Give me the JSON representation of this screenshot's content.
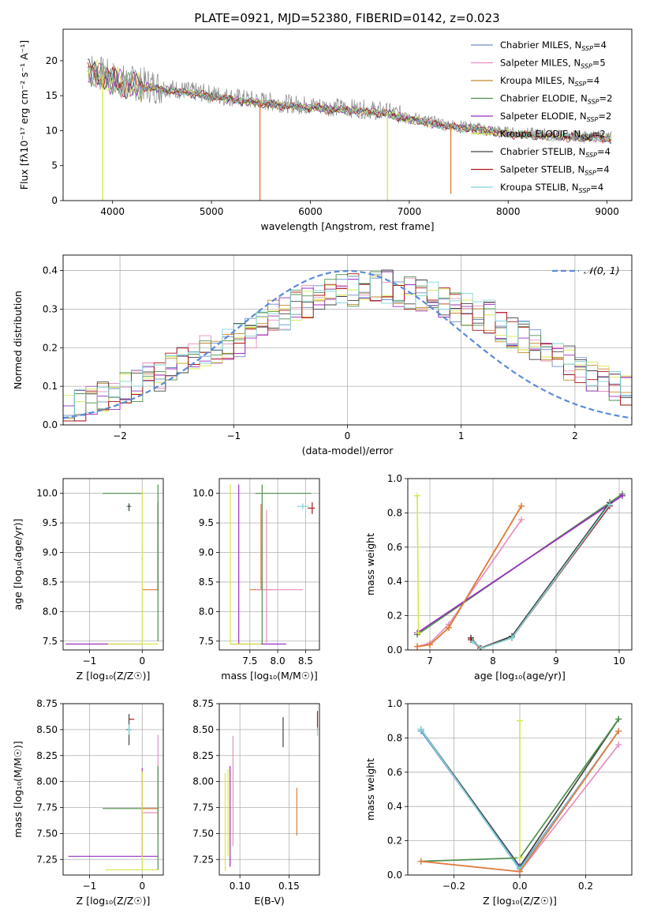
{
  "title": "PLATE=0921, MJD=52380, FIBERID=0142, z=0.023",
  "colors": {
    "Chabrier MILES": "#6f8fc9",
    "Salpeter MILES": "#e58fbf",
    "Kroupa MILES": "#c08a2f",
    "Chabrier ELODIE": "#4f8f4f",
    "Salpeter ELODIE": "#9b2fbf",
    "Kroupa ELODIE": "#d8e84a",
    "Chabrier STELIB": "#444444",
    "Salpeter STELIB": "#b01515",
    "Kroupa STELIB": "#7fd3d6",
    "data": "#888888",
    "orange": "#e07b39",
    "normal": "#5b8bd8"
  },
  "chart_data": [
    {
      "id": "spectrum",
      "type": "line",
      "title": "PLATE=0921, MJD=52380, FIBERID=0142, z=0.023",
      "xlabel": "wavelength [Angstrom, rest frame]",
      "ylabel": "Flux [fλ10⁻¹⁷ erg cm⁻² s⁻¹ A⁻¹]",
      "xlim": [
        3500,
        9250
      ],
      "ylim": [
        0,
        24.5
      ],
      "xticks": [
        4000,
        5000,
        6000,
        7000,
        8000,
        9000
      ],
      "yticks": [
        0,
        5,
        10,
        15,
        20
      ],
      "grid": false,
      "legend_position": "top-right",
      "legend": [
        {
          "label": "Chabrier MILES, N",
          "sub": "SSP",
          "tail": "=4",
          "color": "#6f8fc9"
        },
        {
          "label": "Salpeter MILES, N",
          "sub": "SSP",
          "tail": "=5",
          "color": "#e58fbf"
        },
        {
          "label": "Kroupa MILES, N",
          "sub": "SSP",
          "tail": "=4",
          "color": "#c08a2f"
        },
        {
          "label": "Chabrier ELODIE, N",
          "sub": "SSP",
          "tail": "=2",
          "color": "#4f8f4f"
        },
        {
          "label": "Salpeter ELODIE, N",
          "sub": "SSP",
          "tail": "=2",
          "color": "#9b2fbf"
        },
        {
          "label": "Kroupa ELODIE, N",
          "sub": "SSP",
          "tail": "=2",
          "color": "#d8e84a"
        },
        {
          "label": "Chabrier STELIB, N",
          "sub": "SSP",
          "tail": "=4",
          "color": "#444444"
        },
        {
          "label": "Salpeter STELIB, N",
          "sub": "SSP",
          "tail": "=4",
          "color": "#b01515"
        },
        {
          "label": "Kroupa STELIB, N",
          "sub": "SSP",
          "tail": "=4",
          "color": "#7fd3d6"
        }
      ],
      "continuum": {
        "x": [
          3750,
          3900,
          4000,
          4100,
          4200,
          4400,
          4600,
          4800,
          5000,
          5200,
          5400,
          5600,
          5800,
          6000,
          6200,
          6400,
          6600,
          6800,
          7000,
          7200,
          7400,
          7600,
          7800,
          8000,
          8300,
          8600,
          8900,
          9050
        ],
        "y": [
          19,
          18,
          17.5,
          17,
          16.8,
          16.4,
          16,
          15.6,
          15.2,
          14.8,
          14.4,
          14.1,
          13.8,
          13.6,
          13.4,
          13.2,
          13.0,
          12.6,
          12.0,
          11.4,
          10.9,
          10.6,
          10.2,
          9.8,
          9.6,
          9.3,
          9.2,
          9.1
        ]
      },
      "spikes_down": [
        {
          "x": 3900,
          "y": 0,
          "series": "Kroupa ELODIE"
        },
        {
          "x": 5490,
          "y": 0,
          "series": "orange"
        },
        {
          "x": 6780,
          "y": 0,
          "series": "Kroupa ELODIE"
        },
        {
          "x": 7420,
          "y": 1.0,
          "series": "orange"
        }
      ]
    },
    {
      "id": "residuals",
      "type": "histogram",
      "xlabel": "(data-model)/error",
      "ylabel": "Normed distribution",
      "xlim": [
        -2.5,
        2.5
      ],
      "ylim": [
        0,
        0.44
      ],
      "xticks": [
        -2,
        -1,
        0,
        1,
        2
      ],
      "yticks": [
        0.0,
        0.1,
        0.2,
        0.3,
        0.4
      ],
      "grid": true,
      "legend": [
        {
          "label": "𝒩(0, 1)",
          "color": "#5b8bd8",
          "style": "dashed"
        }
      ],
      "legend_position": "top-right",
      "bin_width": 0.1,
      "x_start": -2.5,
      "base": [
        0.04,
        0.05,
        0.06,
        0.07,
        0.08,
        0.09,
        0.1,
        0.12,
        0.13,
        0.15,
        0.16,
        0.17,
        0.19,
        0.2,
        0.21,
        0.22,
        0.24,
        0.26,
        0.28,
        0.29,
        0.31,
        0.32,
        0.33,
        0.34,
        0.35,
        0.35,
        0.36,
        0.36,
        0.36,
        0.35,
        0.34,
        0.34,
        0.33,
        0.32,
        0.31,
        0.3,
        0.29,
        0.28,
        0.26,
        0.24,
        0.23,
        0.21,
        0.19,
        0.18,
        0.16,
        0.14,
        0.13,
        0.11,
        0.1,
        0.09,
        0.08
      ],
      "normal": {
        "mean": 0,
        "sigma": 1
      }
    },
    {
      "id": "age-Z",
      "type": "errorbar",
      "xlabel": "Z [log₁₀(Z/Z☉)]",
      "ylabel": "age  [log₁₀(age/yr)]",
      "xlim": [
        -1.5,
        0.4
      ],
      "ylim": [
        7.35,
        10.25
      ],
      "xticks": [
        -1,
        0
      ],
      "yticks": [
        7.5,
        8.0,
        8.5,
        9.0,
        9.5,
        10.0
      ],
      "grid": true,
      "points": [
        {
          "x": 0.0,
          "y": 10.0,
          "xerr": [
            0.75,
            0.0
          ],
          "yerr": [
            0,
            0
          ],
          "series": "Chabrier ELODIE"
        },
        {
          "x": -0.25,
          "y": 9.78,
          "xerr": [
            0.05,
            0.05
          ],
          "yerr": [
            0.08,
            0.05
          ],
          "series": "Kroupa STELIB"
        },
        {
          "x": -0.25,
          "y": 9.78,
          "xerr": [
            0.03,
            0.03
          ],
          "yerr": [
            0.08,
            0.05
          ],
          "series": "Chabrier STELIB"
        },
        {
          "x": 0.3,
          "y": 8.37,
          "xerr": [
            0.3,
            0.0
          ],
          "yerr": [
            0,
            1.45
          ],
          "series": "orange"
        },
        {
          "x": 0.3,
          "y": 9.7,
          "xerr": [
            0,
            0
          ],
          "yerr": [
            1.35,
            0.15
          ],
          "series": "Salpeter STELIB"
        },
        {
          "x": 0.0,
          "y": 7.45,
          "xerr": [
            1.45,
            0.0
          ],
          "yerr": [
            0,
            0
          ],
          "series": "Salpeter ELODIE"
        },
        {
          "x": 0.0,
          "y": 7.45,
          "xerr": [
            0.65,
            0.3
          ],
          "yerr": [
            0,
            2.6
          ],
          "series": "Kroupa ELODIE"
        },
        {
          "x": 0.3,
          "y": 8.5,
          "xerr": [
            0,
            0
          ],
          "yerr": [
            1.0,
            1.65
          ],
          "series": "Chabrier ELODIE"
        }
      ]
    },
    {
      "id": "age-mass",
      "type": "errorbar",
      "xlabel": "mass [log₁₀(M/M☉)]",
      "ylabel": "",
      "xlim": [
        6.95,
        8.75
      ],
      "ylim": [
        7.35,
        10.25
      ],
      "xticks": [
        7.5,
        8.0,
        8.5
      ],
      "yticks": [
        7.5,
        8.0,
        8.5,
        9.0,
        9.5,
        10.0
      ],
      "grid": true,
      "points": [
        {
          "x": 7.7,
          "y": 10.0,
          "xerr": [
            0.1,
            0.9
          ],
          "yerr": [
            0,
            0
          ],
          "series": "Chabrier ELODIE"
        },
        {
          "x": 8.45,
          "y": 9.78,
          "xerr": [
            0.1,
            0.1
          ],
          "yerr": [
            0.05,
            0.05
          ],
          "series": "Kroupa STELIB"
        },
        {
          "x": 8.62,
          "y": 9.75,
          "xerr": [
            0.08,
            0.05
          ],
          "yerr": [
            0.1,
            0.1
          ],
          "series": "Salpeter STELIB"
        },
        {
          "x": 7.7,
          "y": 8.37,
          "xerr": [
            0.2,
            0.2
          ],
          "yerr": [
            0,
            1.45
          ],
          "series": "orange"
        },
        {
          "x": 7.8,
          "y": 8.37,
          "xerr": [
            0.2,
            0.65
          ],
          "yerr": [
            0.9,
            1.35
          ],
          "series": "Salpeter MILES"
        },
        {
          "x": 7.3,
          "y": 7.45,
          "xerr": [
            0.15,
            0.85
          ],
          "yerr": [
            0,
            2.7
          ],
          "series": "Salpeter ELODIE"
        },
        {
          "x": 7.15,
          "y": 7.45,
          "xerr": [
            0,
            0.55
          ],
          "yerr": [
            0,
            2.7
          ],
          "series": "Kroupa ELODIE"
        },
        {
          "x": 7.72,
          "y": 8.5,
          "xerr": [
            0,
            0
          ],
          "yerr": [
            1.05,
            1.65
          ],
          "series": "Chabrier ELODIE"
        }
      ]
    },
    {
      "id": "weight-age",
      "type": "line",
      "xlabel": "age  [log₁₀(age/yr)]",
      "ylabel": "mass weight",
      "xlim": [
        6.65,
        10.2
      ],
      "ylim": [
        0,
        1.0
      ],
      "xticks": [
        7,
        8,
        9,
        10
      ],
      "yticks": [
        0.0,
        0.2,
        0.4,
        0.6,
        0.8,
        1.0
      ],
      "grid": true,
      "series": [
        {
          "name": "Chabrier MILES",
          "x": [
            7.65,
            7.8,
            8.3,
            9.85
          ],
          "y": [
            0.07,
            0.01,
            0.08,
            0.86
          ]
        },
        {
          "name": "Salpeter MILES",
          "x": [
            6.8,
            7.0,
            7.3,
            8.45
          ],
          "y": [
            0.02,
            0.04,
            0.15,
            0.76
          ]
        },
        {
          "name": "Kroupa MILES",
          "x": [
            6.8,
            7.0,
            7.3,
            8.45
          ],
          "y": [
            0.02,
            0.03,
            0.13,
            0.84
          ]
        },
        {
          "name": "Chabrier ELODIE",
          "x": [
            6.8,
            10.05
          ],
          "y": [
            0.09,
            0.91
          ]
        },
        {
          "name": "Salpeter ELODIE",
          "x": [
            6.8,
            10.05
          ],
          "y": [
            0.1,
            0.9
          ]
        },
        {
          "name": "Kroupa ELODIE",
          "x": [
            6.82,
            6.8
          ],
          "y": [
            0.1,
            0.9
          ]
        },
        {
          "name": "Chabrier STELIB",
          "x": [
            7.65,
            7.8,
            8.3,
            9.85
          ],
          "y": [
            0.07,
            0.01,
            0.08,
            0.86
          ]
        },
        {
          "name": "Salpeter STELIB",
          "x": [
            7.65,
            7.8,
            8.3,
            9.85
          ],
          "y": [
            0.06,
            0.01,
            0.07,
            0.84
          ]
        },
        {
          "name": "Kroupa STELIB",
          "x": [
            7.68,
            7.82,
            8.3,
            9.85
          ],
          "y": [
            0.05,
            0.01,
            0.07,
            0.85
          ]
        },
        {
          "name": "orange",
          "x": [
            6.8,
            7.0,
            7.3,
            8.45
          ],
          "y": [
            0.02,
            0.03,
            0.13,
            0.84
          ]
        }
      ]
    },
    {
      "id": "mass-Z",
      "type": "errorbar",
      "xlabel": "Z [log₁₀(Z/Z☉)]",
      "ylabel": "mass [log₁₀(M/M☉)]",
      "xlim": [
        -1.5,
        0.4
      ],
      "ylim": [
        7.1,
        8.75
      ],
      "xticks": [
        -1,
        0
      ],
      "yticks": [
        7.25,
        7.5,
        7.75,
        8.0,
        8.25,
        8.5,
        8.75
      ],
      "grid": true,
      "points": [
        {
          "x": -0.25,
          "y": 8.6,
          "xerr": [
            0,
            0.1
          ],
          "yerr": [
            0,
            0
          ],
          "series": "Salpeter STELIB"
        },
        {
          "x": -0.25,
          "y": 8.5,
          "xerr": [
            0.05,
            0.05
          ],
          "yerr": [
            0.15,
            0.15
          ],
          "series": "Chabrier STELIB"
        },
        {
          "x": -0.25,
          "y": 8.5,
          "xerr": [
            0.03,
            0.05
          ],
          "yerr": [
            0.05,
            0.05
          ],
          "series": "Kroupa STELIB"
        },
        {
          "x": 0.0,
          "y": 7.74,
          "xerr": [
            0.75,
            0.3
          ],
          "yerr": [
            0,
            0
          ],
          "series": "Chabrier ELODIE"
        },
        {
          "x": 0.3,
          "y": 7.74,
          "xerr": [
            0.3,
            0
          ],
          "yerr": [
            0.25,
            0.4
          ],
          "series": "orange"
        },
        {
          "x": 0.3,
          "y": 7.7,
          "xerr": [
            0.3,
            0
          ],
          "yerr": [
            0.2,
            0.75
          ],
          "series": "Salpeter MILES"
        },
        {
          "x": 0.0,
          "y": 7.28,
          "xerr": [
            1.4,
            0.3
          ],
          "yerr": [
            0,
            0.85
          ],
          "series": "Salpeter ELODIE"
        },
        {
          "x": 0.0,
          "y": 7.15,
          "xerr": [
            0.7,
            0.3
          ],
          "yerr": [
            0,
            0.95
          ],
          "series": "Kroupa ELODIE"
        },
        {
          "x": 0.3,
          "y": 7.7,
          "xerr": [
            0,
            0
          ],
          "yerr": [
            0.55,
            0.45
          ],
          "series": "Chabrier ELODIE"
        }
      ]
    },
    {
      "id": "mass-EBV",
      "type": "errorbar",
      "xlabel": "E(B-V)",
      "ylabel": "",
      "xlim": [
        0.079,
        0.181
      ],
      "ylim": [
        7.1,
        8.75
      ],
      "xticks": [
        0.1,
        0.15
      ],
      "ytick_labels_hidden": false,
      "yticks": [
        7.25,
        7.5,
        7.75,
        8.0,
        8.25,
        8.5,
        8.75
      ],
      "grid": true,
      "vlines": [
        {
          "x": 0.144,
          "y0": 8.33,
          "y1": 8.62,
          "series": "Chabrier STELIB"
        },
        {
          "x": 0.179,
          "y0": 8.5,
          "y1": 8.68,
          "series": "Salpeter STELIB"
        },
        {
          "x": 0.179,
          "y0": 8.44,
          "y1": 8.52,
          "series": "Kroupa STELIB"
        },
        {
          "x": 0.093,
          "y0": 7.38,
          "y1": 8.44,
          "series": "Salpeter MILES"
        },
        {
          "x": 0.158,
          "y0": 7.48,
          "y1": 7.94,
          "series": "orange"
        },
        {
          "x": 0.09,
          "y0": 7.18,
          "y1": 8.15,
          "series": "Salpeter ELODIE"
        },
        {
          "x": 0.085,
          "y0": 7.14,
          "y1": 8.08,
          "series": "Kroupa ELODIE"
        },
        {
          "x": 0.088,
          "y0": 7.28,
          "y1": 8.12,
          "series": "Kroupa ELODIE"
        }
      ]
    },
    {
      "id": "weight-Z",
      "type": "line",
      "xlabel": "Z [log₁₀(Z/Z☉)]",
      "ylabel": "mass weight",
      "xlim": [
        -0.34,
        0.34
      ],
      "ylim": [
        0,
        1.0
      ],
      "xticks": [
        -0.2,
        0.0,
        0.2
      ],
      "yticks": [
        0.0,
        0.2,
        0.4,
        0.6,
        0.8,
        1.0
      ],
      "grid": true,
      "series": [
        {
          "name": "Chabrier STELIB",
          "x": [
            -0.3,
            0.0,
            0.3
          ],
          "y": [
            0.85,
            0.05,
            0.91
          ]
        },
        {
          "name": "Chabrier MILES",
          "x": [
            -0.3,
            0.0,
            0.3
          ],
          "y": [
            0.84,
            0.04,
            0.84
          ]
        },
        {
          "name": "Kroupa STELIB",
          "x": [
            -0.3,
            0.0,
            0.3
          ],
          "y": [
            0.85,
            0.03,
            0.84
          ]
        },
        {
          "name": "Chabrier ELODIE",
          "x": [
            -0.3,
            0.0,
            0.3
          ],
          "y": [
            0.08,
            0.1,
            0.91
          ]
        },
        {
          "name": "Salpeter MILES",
          "x": [
            -0.3,
            0.0,
            0.3
          ],
          "y": [
            0.08,
            0.02,
            0.76
          ]
        },
        {
          "name": "orange",
          "x": [
            -0.3,
            0.0,
            0.3
          ],
          "y": [
            0.08,
            0.02,
            0.84
          ]
        },
        {
          "name": "Kroupa ELODIE",
          "x": [
            0.0,
            0.0
          ],
          "y": [
            0.1,
            0.9
          ]
        }
      ]
    }
  ]
}
